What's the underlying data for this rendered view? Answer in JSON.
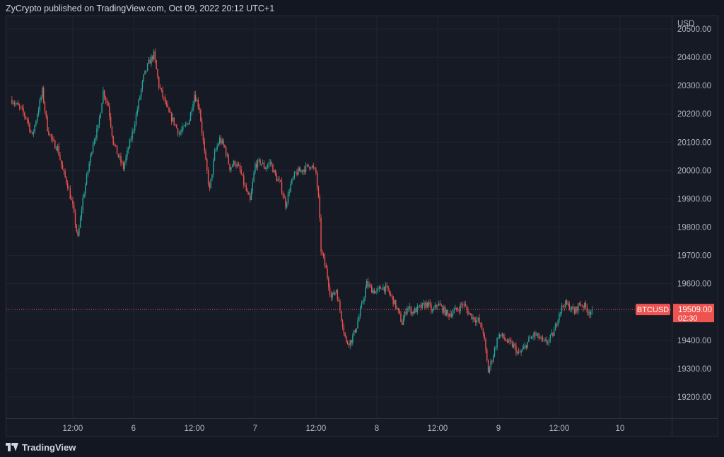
{
  "header": {
    "published_text": "ZyCrypto published on TradingView.com, Oct 09, 2022 20:12 UTC+1"
  },
  "footer": {
    "brand": "TradingView",
    "logo_icon": "tradingview-logo-icon"
  },
  "colors": {
    "background": "#131722",
    "grid": "#1f2433",
    "up": "#26a69a",
    "down": "#ef5350",
    "axis_text": "#b2b5be",
    "price_line": "#ef5350"
  },
  "chart_data": {
    "type": "candlestick",
    "symbol": "BTCUSD",
    "currency_label": "USD",
    "last_price": "19509.00",
    "countdown": "02:30",
    "y_ticks": [
      "20500.00",
      "20400.00",
      "20300.00",
      "20200.00",
      "20100.00",
      "20000.00",
      "19900.00",
      "19800.00",
      "19700.00",
      "19600.00",
      "19500.00",
      "19400.00",
      "19300.00",
      "19200.00"
    ],
    "y_tick_values": [
      20500,
      20400,
      20300,
      20200,
      20100,
      20000,
      19900,
      19800,
      19700,
      19600,
      19500,
      19400,
      19300,
      19200
    ],
    "ylim": [
      19125,
      20545
    ],
    "x_ticks": [
      "12:00",
      "6",
      "12:00",
      "7",
      "12:00",
      "8",
      "12:00",
      "9",
      "12:00",
      "10"
    ],
    "x_tick_hours": [
      12,
      24,
      36,
      48,
      60,
      72,
      84,
      96,
      108,
      120
    ],
    "xlim_hours": [
      -1.1,
      130.2
    ],
    "last_hour": 114.5,
    "path_points": [
      [
        0,
        20250
      ],
      [
        1,
        20230
      ],
      [
        2,
        20210
      ],
      [
        3,
        20180
      ],
      [
        4,
        20120
      ],
      [
        5,
        20200
      ],
      [
        6,
        20280
      ],
      [
        7,
        20150
      ],
      [
        8,
        20100
      ],
      [
        9,
        20080
      ],
      [
        10,
        20000
      ],
      [
        11,
        19950
      ],
      [
        12,
        19870
      ],
      [
        13,
        19760
      ],
      [
        14,
        19900
      ],
      [
        15,
        20000
      ],
      [
        16,
        20100
      ],
      [
        17,
        20150
      ],
      [
        18,
        20280
      ],
      [
        19,
        20230
      ],
      [
        20,
        20100
      ],
      [
        21,
        20050
      ],
      [
        22,
        20010
      ],
      [
        23,
        20080
      ],
      [
        24,
        20150
      ],
      [
        25,
        20240
      ],
      [
        26,
        20330
      ],
      [
        27,
        20380
      ],
      [
        28,
        20410
      ],
      [
        29,
        20300
      ],
      [
        30,
        20250
      ],
      [
        31,
        20200
      ],
      [
        32,
        20170
      ],
      [
        33,
        20130
      ],
      [
        34,
        20150
      ],
      [
        35,
        20180
      ],
      [
        36,
        20270
      ],
      [
        37,
        20220
      ],
      [
        38,
        20060
      ],
      [
        39,
        19930
      ],
      [
        40,
        20060
      ],
      [
        41,
        20110
      ],
      [
        42,
        20080
      ],
      [
        43,
        20010
      ],
      [
        44,
        20030
      ],
      [
        45,
        20000
      ],
      [
        46,
        19940
      ],
      [
        47,
        19890
      ],
      [
        48,
        20020
      ],
      [
        49,
        20030
      ],
      [
        50,
        20010
      ],
      [
        51,
        20030
      ],
      [
        52,
        19980
      ],
      [
        53,
        19950
      ],
      [
        54,
        19880
      ],
      [
        55,
        19950
      ],
      [
        56,
        19990
      ],
      [
        57,
        20000
      ],
      [
        58,
        20010
      ],
      [
        59,
        20020
      ],
      [
        60,
        19990
      ],
      [
        60.6,
        19880
      ],
      [
        61,
        19720
      ],
      [
        62,
        19650
      ],
      [
        63,
        19550
      ],
      [
        64,
        19580
      ],
      [
        65,
        19480
      ],
      [
        66,
        19390
      ],
      [
        67,
        19400
      ],
      [
        68,
        19450
      ],
      [
        69,
        19520
      ],
      [
        70,
        19600
      ],
      [
        71,
        19580
      ],
      [
        72,
        19570
      ],
      [
        73,
        19590
      ],
      [
        74,
        19580
      ],
      [
        75,
        19550
      ],
      [
        76,
        19510
      ],
      [
        77,
        19460
      ],
      [
        78,
        19520
      ],
      [
        79,
        19500
      ],
      [
        80,
        19510
      ],
      [
        81,
        19520
      ],
      [
        82,
        19530
      ],
      [
        83,
        19500
      ],
      [
        84,
        19530
      ],
      [
        85,
        19510
      ],
      [
        86,
        19490
      ],
      [
        87,
        19500
      ],
      [
        88,
        19510
      ],
      [
        89,
        19530
      ],
      [
        90,
        19500
      ],
      [
        91,
        19480
      ],
      [
        92,
        19470
      ],
      [
        93,
        19430
      ],
      [
        94,
        19290
      ],
      [
        95,
        19350
      ],
      [
        96,
        19420
      ],
      [
        97,
        19410
      ],
      [
        98,
        19390
      ],
      [
        99,
        19380
      ],
      [
        100,
        19350
      ],
      [
        101,
        19370
      ],
      [
        102,
        19400
      ],
      [
        103,
        19420
      ],
      [
        104,
        19410
      ],
      [
        105,
        19390
      ],
      [
        106,
        19400
      ],
      [
        107,
        19430
      ],
      [
        108,
        19500
      ],
      [
        109,
        19530
      ],
      [
        110,
        19520
      ],
      [
        111,
        19500
      ],
      [
        112,
        19530
      ],
      [
        113,
        19520
      ],
      [
        114,
        19500
      ],
      [
        114.5,
        19509
      ]
    ]
  }
}
